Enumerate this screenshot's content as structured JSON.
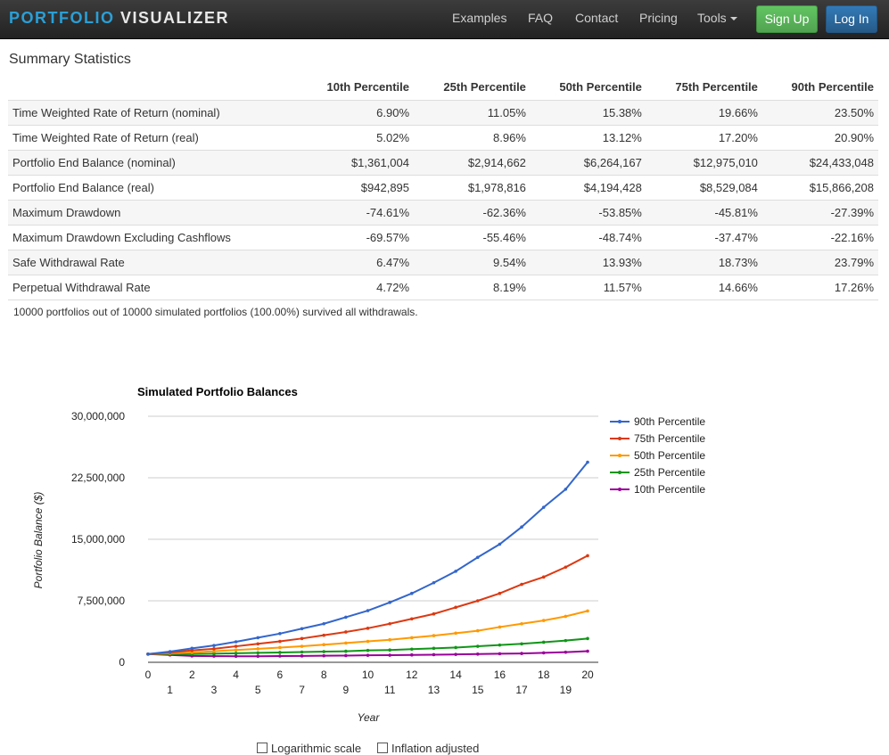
{
  "navbar": {
    "brand_part1": "PORTFOLIO",
    "brand_part2": "VISUALIZER",
    "links": [
      "Examples",
      "FAQ",
      "Contact",
      "Pricing"
    ],
    "tools": "Tools",
    "signup": "Sign Up",
    "login": "Log In"
  },
  "summary": {
    "title": "Summary Statistics",
    "columns": [
      "10th Percentile",
      "25th Percentile",
      "50th Percentile",
      "75th Percentile",
      "90th Percentile"
    ],
    "rows": [
      {
        "label": "Time Weighted Rate of Return (nominal)",
        "values": [
          "6.90%",
          "11.05%",
          "15.38%",
          "19.66%",
          "23.50%"
        ]
      },
      {
        "label": "Time Weighted Rate of Return (real)",
        "values": [
          "5.02%",
          "8.96%",
          "13.12%",
          "17.20%",
          "20.90%"
        ]
      },
      {
        "label": "Portfolio End Balance (nominal)",
        "values": [
          "$1,361,004",
          "$2,914,662",
          "$6,264,167",
          "$12,975,010",
          "$24,433,048"
        ]
      },
      {
        "label": "Portfolio End Balance (real)",
        "values": [
          "$942,895",
          "$1,978,816",
          "$4,194,428",
          "$8,529,084",
          "$15,866,208"
        ]
      },
      {
        "label": "Maximum Drawdown",
        "values": [
          "-74.61%",
          "-62.36%",
          "-53.85%",
          "-45.81%",
          "-27.39%"
        ]
      },
      {
        "label": "Maximum Drawdown Excluding Cashflows",
        "values": [
          "-69.57%",
          "-55.46%",
          "-48.74%",
          "-37.47%",
          "-22.16%"
        ]
      },
      {
        "label": "Safe Withdrawal Rate",
        "values": [
          "6.47%",
          "9.54%",
          "13.93%",
          "18.73%",
          "23.79%"
        ]
      },
      {
        "label": "Perpetual Withdrawal Rate",
        "values": [
          "4.72%",
          "8.19%",
          "11.57%",
          "14.66%",
          "17.26%"
        ]
      }
    ],
    "survived_text": "10000 portfolios out of 10000 simulated portfolios (100.00%) survived all withdrawals."
  },
  "options": {
    "log_scale": "Logarithmic scale",
    "inflation": "Inflation adjusted"
  },
  "chart_data": {
    "type": "line",
    "title": "Simulated Portfolio Balances",
    "xlabel": "Year",
    "ylabel": "Portfolio Balance ($)",
    "ylim": [
      0,
      30000000
    ],
    "yticks": [
      0,
      7500000,
      15000000,
      22500000,
      30000000
    ],
    "ytick_labels": [
      "0",
      "7,500,000",
      "15,000,000",
      "22,500,000",
      "30,000,000"
    ],
    "x": [
      0,
      1,
      2,
      3,
      4,
      5,
      6,
      7,
      8,
      9,
      10,
      11,
      12,
      13,
      14,
      15,
      16,
      17,
      18,
      19,
      20
    ],
    "grid": true,
    "legend_position": "right",
    "series": [
      {
        "name": "90th Percentile",
        "color": "#3366cc",
        "values": [
          1000000,
          1300000,
          1700000,
          2050000,
          2500000,
          3000000,
          3500000,
          4100000,
          4700000,
          5500000,
          6300000,
          7300000,
          8400000,
          9700000,
          11100000,
          12800000,
          14400000,
          16500000,
          18900000,
          21100000,
          24400000
        ]
      },
      {
        "name": "75th Percentile",
        "color": "#dc3912",
        "values": [
          1000000,
          1200000,
          1450000,
          1650000,
          1950000,
          2250000,
          2550000,
          2900000,
          3300000,
          3700000,
          4150000,
          4700000,
          5300000,
          5900000,
          6700000,
          7500000,
          8400000,
          9500000,
          10400000,
          11600000,
          13000000
        ]
      },
      {
        "name": "50th Percentile",
        "color": "#ff9900",
        "values": [
          1000000,
          1100000,
          1200000,
          1350000,
          1500000,
          1650000,
          1800000,
          1950000,
          2150000,
          2350000,
          2550000,
          2750000,
          3000000,
          3250000,
          3550000,
          3850000,
          4300000,
          4700000,
          5100000,
          5600000,
          6260000
        ]
      },
      {
        "name": "25th Percentile",
        "color": "#109618",
        "values": [
          1000000,
          1000000,
          1000000,
          1050000,
          1100000,
          1150000,
          1200000,
          1250000,
          1300000,
          1350000,
          1450000,
          1500000,
          1600000,
          1700000,
          1800000,
          1950000,
          2100000,
          2250000,
          2450000,
          2650000,
          2900000
        ]
      },
      {
        "name": "10th Percentile",
        "color": "#990099",
        "values": [
          1000000,
          900000,
          780000,
          750000,
          740000,
          740000,
          760000,
          780000,
          800000,
          820000,
          850000,
          870000,
          900000,
          930000,
          960000,
          1000000,
          1040000,
          1080000,
          1150000,
          1230000,
          1360000
        ]
      }
    ]
  }
}
